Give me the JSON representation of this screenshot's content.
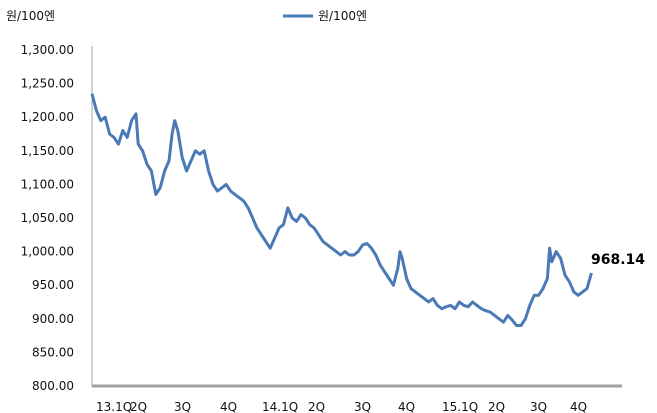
{
  "chart_data": {
    "type": "line",
    "ylabel": "원/100엔",
    "ylim": [
      800,
      1300
    ],
    "y_ticks": [
      "1,300.00",
      "1,250.00",
      "1,200.00",
      "1,150.00",
      "1,100.00",
      "1,050.00",
      "1,000.00",
      "950.00",
      "900.00",
      "850.00",
      "800.00"
    ],
    "y_tick_values": [
      1300,
      1250,
      1200,
      1150,
      1100,
      1050,
      1000,
      950,
      900,
      850,
      800
    ],
    "x_ticks": [
      "13.1Q",
      "2Q",
      "3Q",
      "4Q",
      "14.1Q",
      "2Q",
      "3Q",
      "4Q",
      "15.1Q",
      "2Q",
      "3Q",
      "4Q"
    ],
    "x_tick_index": [
      0,
      1,
      2,
      3,
      4,
      5,
      6,
      7,
      8,
      9,
      10,
      11
    ],
    "x_total_quarters": 12,
    "legend_position": "top-center",
    "grid": false,
    "colors": {
      "series": "#4a7ab5",
      "axis": "#a0a0a0"
    },
    "series": [
      {
        "name": "원/100엔",
        "points": [
          [
            0.0,
            1235
          ],
          [
            0.1,
            1210
          ],
          [
            0.2,
            1195
          ],
          [
            0.3,
            1200
          ],
          [
            0.4,
            1175
          ],
          [
            0.5,
            1170
          ],
          [
            0.6,
            1160
          ],
          [
            0.7,
            1180
          ],
          [
            0.8,
            1170
          ],
          [
            0.9,
            1195
          ],
          [
            1.0,
            1205
          ],
          [
            1.05,
            1160
          ],
          [
            1.15,
            1150
          ],
          [
            1.25,
            1130
          ],
          [
            1.35,
            1120
          ],
          [
            1.45,
            1085
          ],
          [
            1.55,
            1095
          ],
          [
            1.65,
            1120
          ],
          [
            1.75,
            1135
          ],
          [
            1.82,
            1175
          ],
          [
            1.88,
            1195
          ],
          [
            1.95,
            1180
          ],
          [
            2.05,
            1140
          ],
          [
            2.15,
            1120
          ],
          [
            2.25,
            1135
          ],
          [
            2.35,
            1150
          ],
          [
            2.45,
            1145
          ],
          [
            2.55,
            1150
          ],
          [
            2.65,
            1120
          ],
          [
            2.75,
            1100
          ],
          [
            2.85,
            1090
          ],
          [
            2.95,
            1095
          ],
          [
            3.05,
            1100
          ],
          [
            3.15,
            1090
          ],
          [
            3.25,
            1085
          ],
          [
            3.35,
            1080
          ],
          [
            3.45,
            1075
          ],
          [
            3.55,
            1065
          ],
          [
            3.65,
            1050
          ],
          [
            3.75,
            1035
          ],
          [
            3.85,
            1025
          ],
          [
            3.95,
            1015
          ],
          [
            4.05,
            1005
          ],
          [
            4.15,
            1020
          ],
          [
            4.25,
            1035
          ],
          [
            4.35,
            1040
          ],
          [
            4.45,
            1065
          ],
          [
            4.55,
            1050
          ],
          [
            4.65,
            1045
          ],
          [
            4.75,
            1055
          ],
          [
            4.85,
            1050
          ],
          [
            4.95,
            1040
          ],
          [
            5.05,
            1035
          ],
          [
            5.15,
            1025
          ],
          [
            5.25,
            1015
          ],
          [
            5.35,
            1010
          ],
          [
            5.45,
            1005
          ],
          [
            5.55,
            1000
          ],
          [
            5.65,
            995
          ],
          [
            5.75,
            1000
          ],
          [
            5.85,
            995
          ],
          [
            5.95,
            995
          ],
          [
            6.05,
            1000
          ],
          [
            6.15,
            1010
          ],
          [
            6.25,
            1012
          ],
          [
            6.35,
            1005
          ],
          [
            6.45,
            995
          ],
          [
            6.55,
            980
          ],
          [
            6.65,
            970
          ],
          [
            6.75,
            960
          ],
          [
            6.85,
            950
          ],
          [
            6.95,
            975
          ],
          [
            7.0,
            1000
          ],
          [
            7.05,
            990
          ],
          [
            7.15,
            960
          ],
          [
            7.25,
            945
          ],
          [
            7.35,
            940
          ],
          [
            7.45,
            935
          ],
          [
            7.55,
            930
          ],
          [
            7.65,
            925
          ],
          [
            7.75,
            930
          ],
          [
            7.85,
            920
          ],
          [
            7.95,
            915
          ],
          [
            8.05,
            918
          ],
          [
            8.15,
            920
          ],
          [
            8.25,
            915
          ],
          [
            8.35,
            925
          ],
          [
            8.45,
            920
          ],
          [
            8.55,
            918
          ],
          [
            8.65,
            925
          ],
          [
            8.75,
            920
          ],
          [
            8.85,
            915
          ],
          [
            8.95,
            912
          ],
          [
            9.05,
            910
          ],
          [
            9.15,
            905
          ],
          [
            9.25,
            900
          ],
          [
            9.35,
            895
          ],
          [
            9.45,
            905
          ],
          [
            9.55,
            898
          ],
          [
            9.65,
            890
          ],
          [
            9.75,
            890
          ],
          [
            9.85,
            900
          ],
          [
            9.95,
            920
          ],
          [
            10.05,
            935
          ],
          [
            10.15,
            935
          ],
          [
            10.25,
            945
          ],
          [
            10.35,
            960
          ],
          [
            10.4,
            1005
          ],
          [
            10.45,
            985
          ],
          [
            10.55,
            1000
          ],
          [
            10.65,
            990
          ],
          [
            10.75,
            965
          ],
          [
            10.85,
            955
          ],
          [
            10.95,
            940
          ],
          [
            11.05,
            935
          ],
          [
            11.15,
            940
          ],
          [
            11.25,
            945
          ],
          [
            11.35,
            968.14
          ]
        ]
      }
    ],
    "end_value_label": "968.14"
  }
}
